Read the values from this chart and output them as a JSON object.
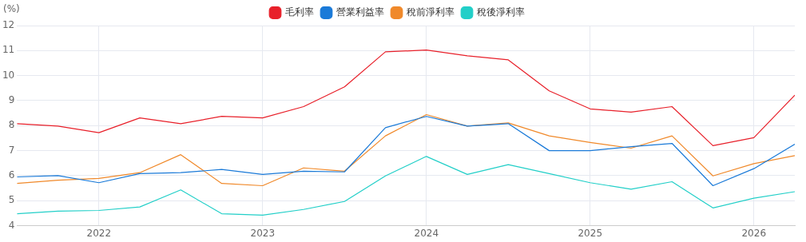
{
  "chart_data": {
    "type": "line",
    "ylabel": "(%)",
    "x": [
      "2021-07",
      "2021-10",
      "2022-01",
      "2022-04",
      "2022-07",
      "2022-10",
      "2023-01",
      "2023-04",
      "2023-07",
      "2023-10",
      "2024-01",
      "2024-04",
      "2024-07",
      "2024-10",
      "2025-01",
      "2025-04",
      "2025-07",
      "2025-10",
      "2026-01",
      "2026-04"
    ],
    "series": [
      {
        "name": "毛利率",
        "color": "#e8202a",
        "values": [
          8.08,
          7.98,
          7.72,
          8.31,
          8.08,
          8.37,
          8.31,
          8.76,
          9.55,
          10.95,
          11.02,
          10.79,
          10.63,
          9.39,
          8.67,
          8.54,
          8.76,
          7.2,
          7.52,
          9.22
        ]
      },
      {
        "name": "營業利益率",
        "color": "#1a7ad8",
        "values": [
          5.95,
          6.0,
          5.72,
          6.08,
          6.12,
          6.25,
          6.05,
          6.18,
          6.15,
          7.92,
          8.37,
          7.98,
          8.08,
          7.0,
          7.0,
          7.16,
          7.29,
          5.6,
          6.28,
          7.26
        ]
      },
      {
        "name": "稅前淨利率",
        "color": "#f0892a",
        "values": [
          5.69,
          5.82,
          5.89,
          6.12,
          6.84,
          5.69,
          5.6,
          6.31,
          6.18,
          7.59,
          8.44,
          7.98,
          8.11,
          7.59,
          7.33,
          7.1,
          7.59,
          5.99,
          6.48,
          6.8
        ]
      },
      {
        "name": "稅後淨利率",
        "color": "#22cfc8",
        "values": [
          4.48,
          4.58,
          4.61,
          4.75,
          5.43,
          4.48,
          4.42,
          4.65,
          4.97,
          5.99,
          6.77,
          6.05,
          6.44,
          6.08,
          5.72,
          5.46,
          5.76,
          4.71,
          5.1,
          5.36
        ]
      }
    ],
    "xlim": [
      "2021-07",
      "2026-04"
    ],
    "xticks": [
      {
        "value": "2022-01",
        "label": "2022"
      },
      {
        "value": "2023-01",
        "label": "2023"
      },
      {
        "value": "2024-01",
        "label": "2024"
      },
      {
        "value": "2025-01",
        "label": "2025"
      },
      {
        "value": "2026-01",
        "label": "2026"
      }
    ],
    "ylim": [
      4,
      12
    ],
    "yticks": [
      4,
      5,
      6,
      7,
      8,
      9,
      10,
      11,
      12
    ],
    "grid": true,
    "legend": "top",
    "marker": "none",
    "line_style": "solid"
  }
}
